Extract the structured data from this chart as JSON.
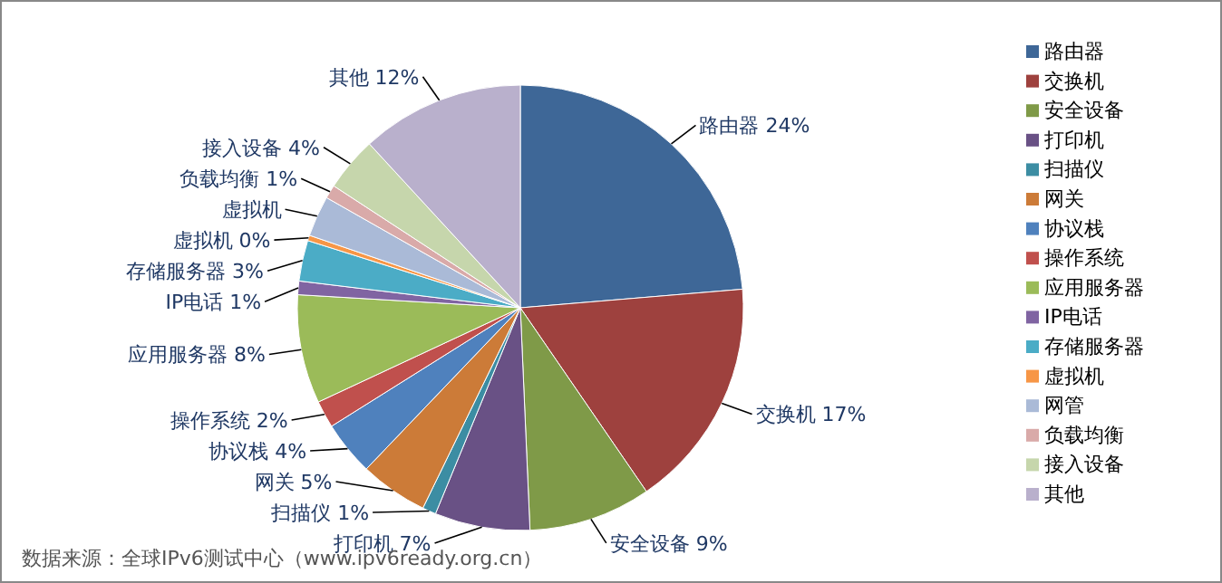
{
  "chart_data": {
    "type": "pie",
    "categories": [
      "路由器",
      "交换机",
      "安全设备",
      "打印机",
      "扫描仪",
      "网关",
      "协议栈",
      "操作系统",
      "应用服务器",
      "IP电话",
      "存储服务器",
      "虚拟机",
      "网管",
      "负载均衡",
      "接入设备",
      "其他"
    ],
    "values": [
      24,
      17,
      9,
      7,
      1,
      5,
      4,
      2,
      8,
      1,
      3,
      0.4,
      3,
      1,
      4,
      12
    ],
    "colors": [
      "#3e6797",
      "#9e413e",
      "#7f9a48",
      "#695185",
      "#3c8da3",
      "#cc7b38",
      "#4f81bd",
      "#c0504d",
      "#9bbb59",
      "#8064a2",
      "#4bacc6",
      "#f79646",
      "#aabad7",
      "#d9aaa9",
      "#c6d6ac",
      "#b9b0cc"
    ],
    "value_labels": [
      "路由器 24%",
      "交换机 17%",
      "安全设备 9%",
      "打印机 7%",
      "扫描仪 1%",
      "网关 5%",
      "协议栈 4%",
      "操作系统 2%",
      "应用服务器 8%",
      "IP电话 1%",
      "存储服务器 3%",
      "虚拟机 0%",
      "虚拟机",
      "负载均衡 1%",
      "接入设备 4%",
      "其他 12%"
    ],
    "legend": "right",
    "annotations": [
      "数据来源：全球IPv6测试中心（www.ipv6ready.org.cn）"
    ]
  }
}
